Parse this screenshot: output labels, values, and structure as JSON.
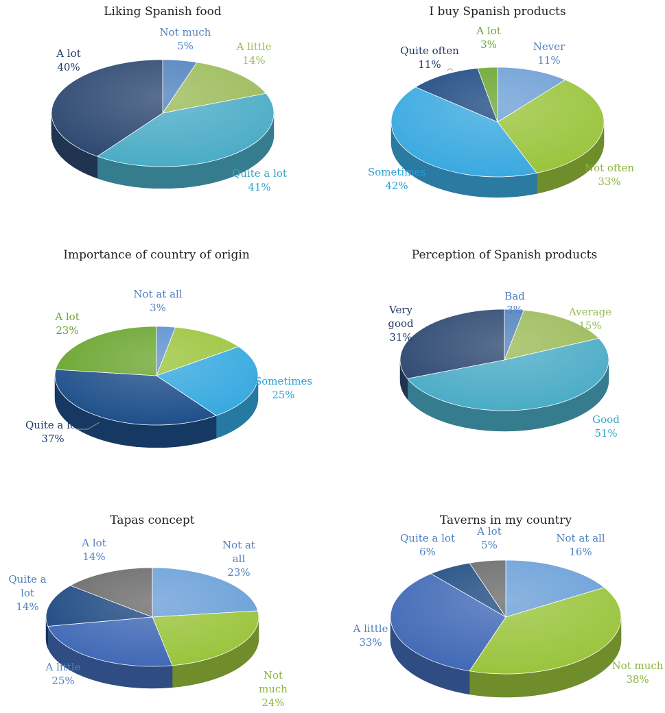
{
  "chart_data": [
    {
      "type": "pie",
      "title": "Liking Spanish food",
      "slices": [
        {
          "name": "Not much",
          "value": 5,
          "color": "#4f81bd",
          "label_color": "#4f81bd"
        },
        {
          "name": "A little",
          "value": 14,
          "color": "#9bbb59",
          "label_color": "#9bbb59"
        },
        {
          "name": "Quite a lot",
          "value": 41,
          "color": "#4bacc6",
          "label_color": "#31a6c4"
        },
        {
          "name": "A lot",
          "value": 40,
          "color": "#2c4770",
          "label_color": "#1f3864"
        }
      ]
    },
    {
      "type": "pie",
      "title": "I buy Spanish products",
      "slices": [
        {
          "name": "Never",
          "value": 11,
          "color": "#6d9fd6",
          "label_color": "#4f81bd"
        },
        {
          "name": "Not often",
          "value": 33,
          "color": "#9ac43c",
          "label_color": "#8cb43a"
        },
        {
          "name": "Sometimes",
          "value": 42,
          "color": "#3aa9e0",
          "label_color": "#2b9fd8"
        },
        {
          "name": "Quite often",
          "value": 11,
          "color": "#1e4a82",
          "label_color": "#1f3864"
        },
        {
          "name": "A lot",
          "value": 3,
          "color": "#6aa52e",
          "label_color": "#6aa52e"
        }
      ]
    },
    {
      "type": "pie",
      "title": "Importance of country of origin",
      "slices": [
        {
          "name": "Not at all",
          "value": 3,
          "color": "#5b8fd0",
          "label_color": "#4f81bd"
        },
        {
          "name": "",
          "value": 12,
          "color": "#9ac43c",
          "label_color": "#8cb43a"
        },
        {
          "name": "Sometimes",
          "value": 25,
          "color": "#35a8e0",
          "label_color": "#2b9fd8"
        },
        {
          "name": "Quite a lot",
          "value": 37,
          "color": "#1f4f8a",
          "label_color": "#1f3864"
        },
        {
          "name": "A lot",
          "value": 23,
          "color": "#6aa52e",
          "label_color": "#6aa52e"
        }
      ]
    },
    {
      "type": "pie",
      "title": "Perception of Spanish products",
      "slices": [
        {
          "name": "Bad",
          "value": 3,
          "color": "#4f81bd",
          "label_color": "#4f81bd"
        },
        {
          "name": "Average",
          "value": 15,
          "color": "#9bbb59",
          "label_color": "#9bbb59"
        },
        {
          "name": "Good",
          "value": 51,
          "color": "#4bacc6",
          "label_color": "#31a6c4"
        },
        {
          "name": "Very good",
          "value": 31,
          "color": "#2c4770",
          "label_color": "#1f3864"
        }
      ]
    },
    {
      "type": "pie",
      "title": "Tapas concept",
      "slices": [
        {
          "name": "Not at all",
          "value": 23,
          "color": "#6a9fd8",
          "label_color": "#4f81bd"
        },
        {
          "name": "Not much",
          "value": 24,
          "color": "#9ac43c",
          "label_color": "#8cb43a"
        },
        {
          "name": "A little",
          "value": 25,
          "color": "#4169b6",
          "label_color": "#4f81bd"
        },
        {
          "name": "Quite a lot",
          "value": 14,
          "color": "#1e4a82",
          "label_color": "#4f81bd"
        },
        {
          "name": "A lot",
          "value": 14,
          "color": "#6a6a6a",
          "label_color": "#4f81bd"
        }
      ]
    },
    {
      "type": "pie",
      "title": "Taverns in my country",
      "slices": [
        {
          "name": "Not at all",
          "value": 16,
          "color": "#6a9fd8",
          "label_color": "#4f81bd"
        },
        {
          "name": "Not much",
          "value": 38,
          "color": "#9ac43c",
          "label_color": "#8cb43a"
        },
        {
          "name": "A little",
          "value": 33,
          "color": "#4169b6",
          "label_color": "#4f81bd"
        },
        {
          "name": "Quite a lot",
          "value": 6,
          "color": "#1e4a82",
          "label_color": "#4f81bd"
        },
        {
          "name": "A lot",
          "value": 5,
          "color": "#6a6a6a",
          "label_color": "#4f81bd"
        }
      ]
    }
  ],
  "labels": [
    [
      {
        "lines": [
          "Not much",
          "5%"
        ]
      },
      {
        "lines": [
          "A little",
          "14%"
        ]
      },
      {
        "lines": [
          "Quite a lot",
          "41%"
        ]
      },
      {
        "lines": [
          "A lot",
          "40%"
        ]
      }
    ],
    [
      {
        "lines": [
          "Never",
          "11%"
        ]
      },
      {
        "lines": [
          "Not often",
          "33%"
        ]
      },
      {
        "lines": [
          "Sometimes",
          "42%"
        ]
      },
      {
        "lines": [
          "Quite often",
          "11%"
        ]
      },
      {
        "lines": [
          "A lot",
          "3%"
        ]
      }
    ],
    [
      {
        "lines": [
          "Not at all",
          "3%"
        ]
      },
      {
        "lines": []
      },
      {
        "lines": [
          "Sometimes",
          "25%"
        ]
      },
      {
        "lines": [
          "Quite a lot",
          "37%"
        ]
      },
      {
        "lines": [
          "A lot",
          "23%"
        ]
      }
    ],
    [
      {
        "lines": [
          "Bad",
          "3%"
        ]
      },
      {
        "lines": [
          "Average",
          "15%"
        ]
      },
      {
        "lines": [
          "Good",
          "51%"
        ]
      },
      {
        "lines": [
          "Very",
          "good",
          "31%"
        ]
      }
    ],
    [
      {
        "lines": [
          "Not at",
          "all",
          "23%"
        ]
      },
      {
        "lines": [
          "Not",
          "much",
          "24%"
        ]
      },
      {
        "lines": [
          "A little",
          "25%"
        ]
      },
      {
        "lines": [
          "Quite a",
          "lot",
          "14%"
        ]
      },
      {
        "lines": [
          "A lot",
          "14%"
        ]
      }
    ],
    [
      {
        "lines": [
          "Not at all",
          "16%"
        ]
      },
      {
        "lines": [
          "Not much",
          "38%"
        ]
      },
      {
        "lines": [
          "A little",
          "33%"
        ]
      },
      {
        "lines": [
          "Quite a lot",
          "6%"
        ]
      },
      {
        "lines": [
          "A lot",
          "5%"
        ]
      }
    ]
  ]
}
